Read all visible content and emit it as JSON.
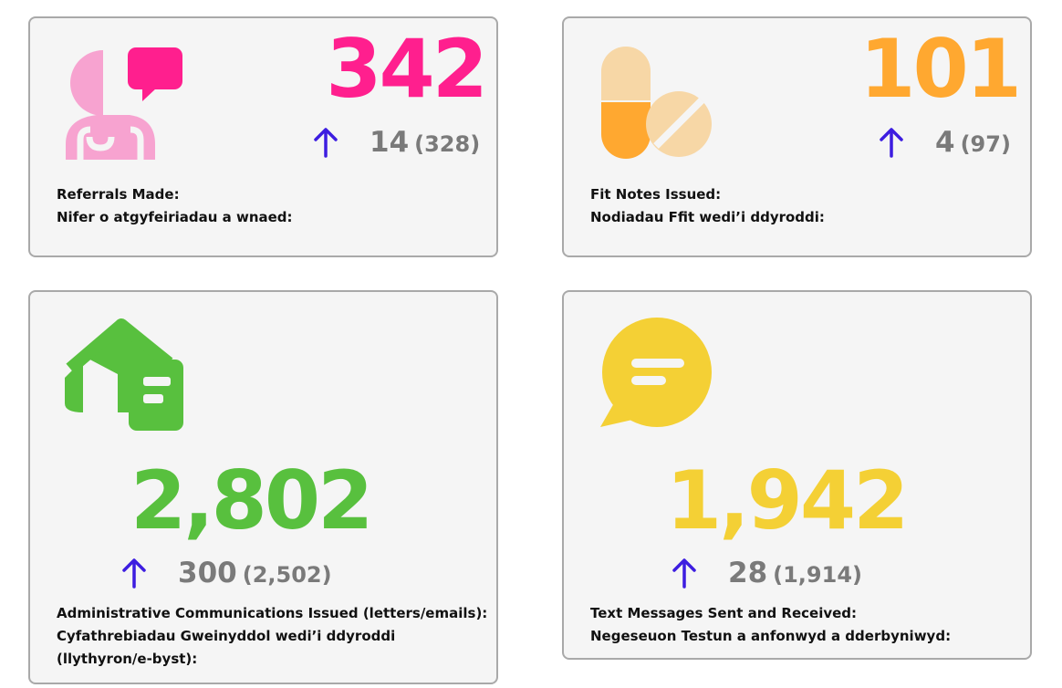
{
  "colors": {
    "referrals": "#ff1f8e",
    "referrals_light": "#f7a3d0",
    "fitnotes": "#ffa830",
    "fitnotes_light": "#f7d7a6",
    "admin": "#58c03e",
    "text": "#f4d035",
    "arrow": "#3d1de0",
    "delta_gray": "#7a7a7a"
  },
  "cards": [
    {
      "id": "referrals",
      "icon": "doctor-chat-icon",
      "value": "342",
      "delta": "14",
      "previous": "(328)",
      "label_en": "Referrals Made:",
      "label_cy": "Nifer o atgyfeiriadau a wnaed:"
    },
    {
      "id": "fitnotes",
      "icon": "pills-icon",
      "value": "101",
      "delta": "4",
      "previous": "(97)",
      "label_en": "Fit Notes Issued:",
      "label_cy": "Nodiadau Ffit wedi’i ddyroddi:"
    },
    {
      "id": "admin",
      "icon": "house-mail-icon",
      "value": "2,802",
      "delta": "300",
      "previous": "(2,502)",
      "label_en": "Administrative Communications Issued (letters/emails):",
      "label_cy": "Cyfathrebiadau Gweinyddol wedi’i ddyroddi (llythyron/e-byst):"
    },
    {
      "id": "text",
      "icon": "chat-bubble-icon",
      "value": "1,942",
      "delta": "28",
      "previous": "(1,914)",
      "label_en": "Text Messages Sent and Received:",
      "label_cy": "Negeseuon Testun a anfonwyd a dderbyniwyd:"
    }
  ]
}
